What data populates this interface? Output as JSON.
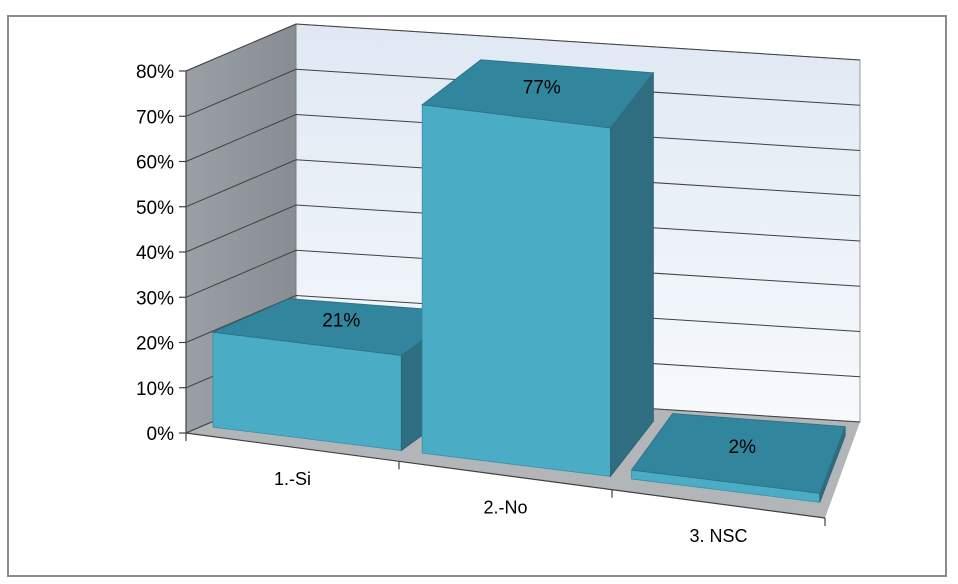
{
  "chart_data": {
    "type": "bar",
    "style": "3d-column",
    "categories": [
      "1.-Si",
      "2.-No",
      "3. NSC"
    ],
    "values": [
      21,
      77,
      2
    ],
    "data_labels": [
      "21%",
      "77%",
      "2%"
    ],
    "y_ticks": [
      "0%",
      "10%",
      "20%",
      "30%",
      "40%",
      "50%",
      "60%",
      "70%",
      "80%"
    ],
    "ylim": [
      0,
      80
    ],
    "title": "",
    "xlabel": "",
    "ylabel": "",
    "grid": true,
    "legend": "none",
    "colors": {
      "bar_front": "#4bacc6",
      "bar_top": "#31859c",
      "bar_side": "#2e6e80",
      "back_wall": "#e8f0f8",
      "side_wall": "#9ea3a8",
      "floor": "#b3b6b9",
      "gridline": "#404040",
      "frame": "#8c8c8c"
    }
  }
}
